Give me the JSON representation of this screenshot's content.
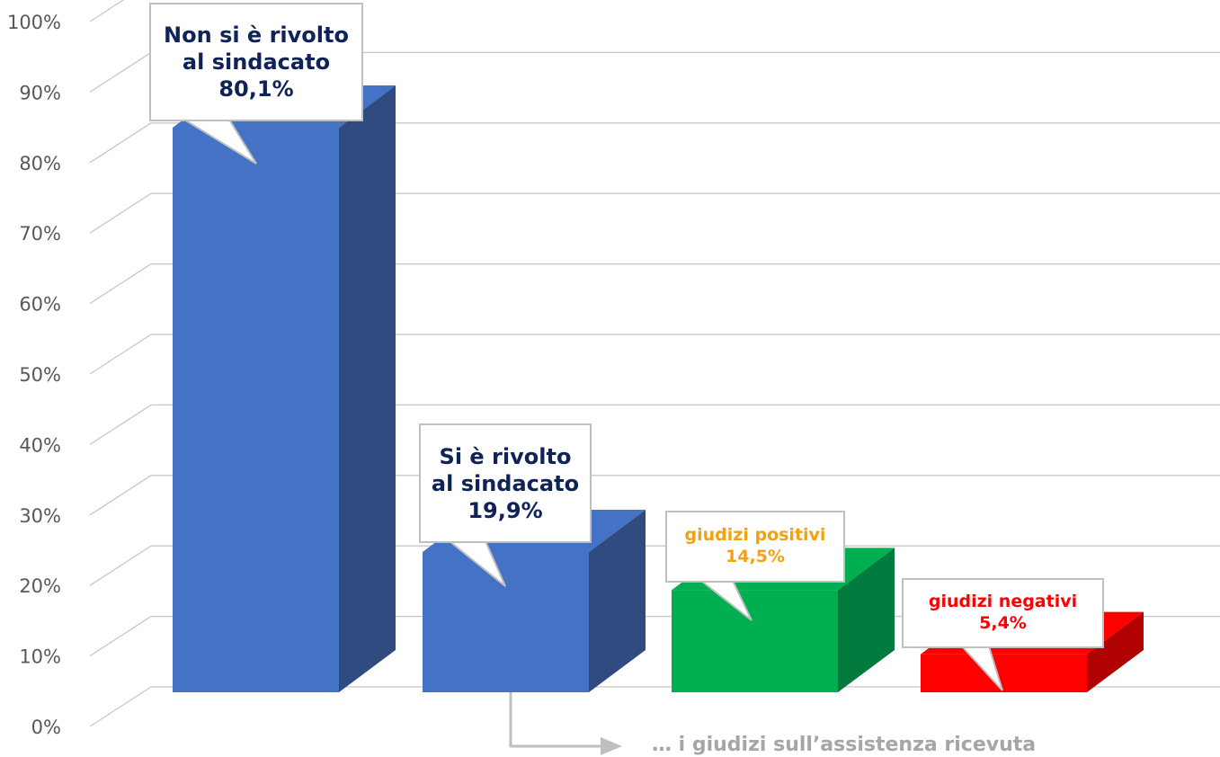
{
  "chart_data": {
    "type": "bar3d",
    "categories": [
      "Non si è rivolto al sindacato",
      "Si è rivolto al sindacato",
      "giudizi positivi",
      "giudizi negativi"
    ],
    "values": [
      80.1,
      19.9,
      14.5,
      5.4
    ],
    "value_labels": [
      "80,1%",
      "19,9%",
      "14,5%",
      "5,4%"
    ],
    "colors": [
      "#4472c4",
      "#4472c4",
      "#00b050",
      "#ff0000"
    ],
    "side_colors": [
      "#2f4b80",
      "#2f4b80",
      "#007a3d",
      "#b00000"
    ],
    "label_colors": [
      "#0f2358",
      "#0f2358",
      "#f5a00f",
      "#ff0000"
    ],
    "ylim": [
      0,
      100
    ],
    "yticks": [
      {
        "value": 0,
        "label": "0%"
      },
      {
        "value": 10,
        "label": "10%"
      },
      {
        "value": 20,
        "label": "20%"
      },
      {
        "value": 30,
        "label": "30%"
      },
      {
        "value": 40,
        "label": "40%"
      },
      {
        "value": 50,
        "label": "50%"
      },
      {
        "value": 60,
        "label": "60%"
      },
      {
        "value": 70,
        "label": "70%"
      },
      {
        "value": 80,
        "label": "80%"
      },
      {
        "value": 90,
        "label": "90%"
      },
      {
        "value": 100,
        "label": "100%"
      }
    ],
    "grid": true,
    "annotation": "… i giudizi sull’assistenza ricevuta"
  }
}
